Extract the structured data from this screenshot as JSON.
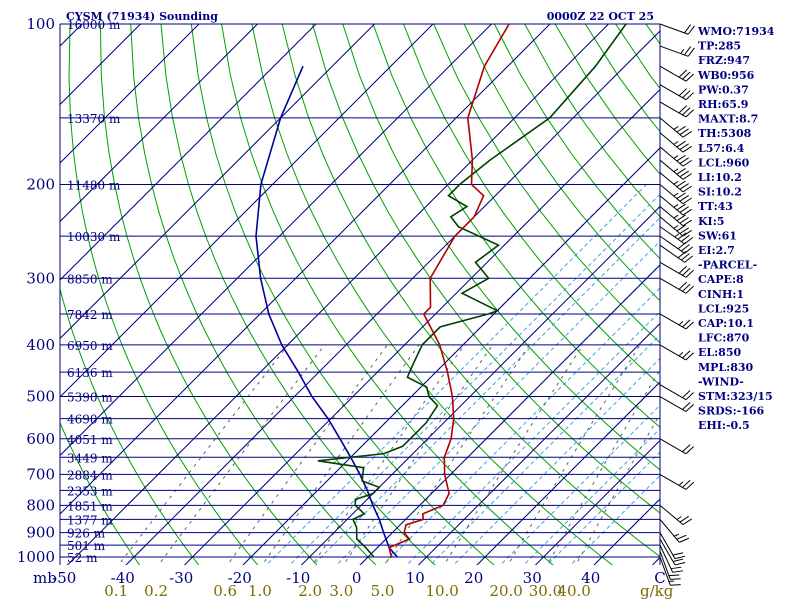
{
  "header": {
    "title": "CYSM (71934) Sounding",
    "time": "0000Z 22 OCT 25"
  },
  "axes": {
    "pressure_unit": "mb",
    "pressure_ticks": [
      "100",
      "200",
      "300",
      "400",
      "500",
      "600",
      "700",
      "800",
      "900",
      "1000"
    ],
    "temp_ticks": [
      "-50",
      "-40",
      "-30",
      "-20",
      "-10",
      "0",
      "10",
      "20",
      "30",
      "40",
      "C"
    ],
    "mix_unit": "g/kg",
    "mix_ticks": [
      "0.1",
      "0.2",
      "0.6",
      "1.0",
      "2.0",
      "3.0",
      "5.0",
      "10.0",
      "20.0",
      "30.0",
      "40.0"
    ]
  },
  "height_labels": [
    "16000 m",
    "13370 m",
    "11480 m",
    "10030 m",
    "8850 m",
    "7842 m",
    "6950 m",
    "6136 m",
    "5390 m",
    "4690 m",
    "4051 m",
    "3449 m",
    "2884 m",
    "2353 m",
    "1851 m",
    "1377 m",
    "926 m",
    "501 m",
    "52 m"
  ],
  "indices": [
    "WMO:71934",
    "TP:285",
    "FRZ:947",
    "WB0:956",
    "PW:0.37",
    "RH:65.9",
    "MAXT:8.7",
    "TH:5308",
    "L57:6.4",
    "LCL:960",
    "LI:10.2",
    "SI:10.2",
    "TT:43",
    "KI:5",
    "SW:61",
    "EI:2.7",
    "-PARCEL-",
    "CAPE:8",
    "CINH:1",
    "LCL:925",
    "CAP:10.1",
    "LFC:870",
    "EL:850",
    "MPL:830",
    "-WIND-",
    "STM:323/15",
    "SRDS:-166",
    "EHI:-0.5"
  ],
  "colors": {
    "temperature": "#b00000",
    "dewpoint": "#004000",
    "parcel": "#0000a0",
    "isobar": "#000080",
    "isotherm": "#000080",
    "dry_adiabat": "#00a000",
    "moist_adiabat": "#40a0e0",
    "mixing_ratio": "#606060",
    "barb": "#000000"
  },
  "chart_data": {
    "type": "skew-t",
    "xlabel": "C",
    "x_range_c": [
      -50,
      50
    ],
    "p_range_mb": [
      100,
      1050
    ],
    "temperature": {
      "p": [
        1000,
        960,
        925,
        900,
        870,
        850,
        830,
        800,
        760,
        700,
        650,
        600,
        550,
        500,
        450,
        400,
        350,
        340,
        300,
        250,
        230,
        210,
        200,
        180,
        150,
        120,
        100
      ],
      "t": [
        4,
        2,
        4,
        2,
        1,
        3,
        2,
        4,
        3,
        -1,
        -4,
        -6,
        -9,
        -13,
        -18,
        -24,
        -32,
        -32,
        -37,
        -40,
        -40,
        -42,
        -46,
        -50,
        -58,
        -64,
        -67
      ]
    },
    "dewpoint": {
      "p": [
        1000,
        960,
        925,
        880,
        850,
        830,
        800,
        780,
        760,
        740,
        720,
        700,
        680,
        660,
        640,
        620,
        600,
        560,
        520,
        500,
        480,
        460,
        440,
        400,
        370,
        350,
        345,
        320,
        300,
        280,
        260,
        240,
        230,
        220,
        210,
        200,
        180,
        150,
        120,
        100
      ],
      "d": [
        1,
        -2,
        -5,
        -7,
        -9,
        -8,
        -11,
        -12,
        -10,
        -10,
        -14,
        -15,
        -16,
        -25,
        -15,
        -13,
        -13,
        -13,
        -14,
        -17,
        -19,
        -24,
        -25,
        -27,
        -27,
        -21,
        -20,
        -29,
        -27,
        -32,
        -31,
        -41,
        -44,
        -43,
        -48,
        -48,
        -47,
        -44,
        -45,
        -47
      ]
    },
    "parcel": {
      "p": [
        1000,
        960,
        925,
        900,
        850,
        800,
        750,
        700,
        650,
        600,
        550,
        500,
        450,
        400,
        350,
        300,
        250,
        200,
        150,
        120
      ],
      "t": [
        5,
        2,
        0,
        -1.5,
        -4.5,
        -8,
        -11.5,
        -15.5,
        -20,
        -25,
        -30.5,
        -37,
        -43.5,
        -51,
        -58.5,
        -66,
        -74,
        -82,
        -90,
        -95
      ]
    },
    "wind_barbs": [
      {
        "p": 1000,
        "dir": 340,
        "kt": 15
      },
      {
        "p": 975,
        "dir": 340,
        "kt": 20
      },
      {
        "p": 950,
        "dir": 335,
        "kt": 20
      },
      {
        "p": 925,
        "dir": 330,
        "kt": 20
      },
      {
        "p": 900,
        "dir": 330,
        "kt": 20
      },
      {
        "p": 850,
        "dir": 320,
        "kt": 25
      },
      {
        "p": 800,
        "dir": 310,
        "kt": 25
      },
      {
        "p": 700,
        "dir": 300,
        "kt": 25
      },
      {
        "p": 600,
        "dir": 300,
        "kt": 20
      },
      {
        "p": 500,
        "dir": 300,
        "kt": 20
      },
      {
        "p": 475,
        "dir": 300,
        "kt": 20
      },
      {
        "p": 400,
        "dir": 300,
        "kt": 25
      },
      {
        "p": 350,
        "dir": 300,
        "kt": 25
      },
      {
        "p": 300,
        "dir": 300,
        "kt": 30
      },
      {
        "p": 280,
        "dir": 300,
        "kt": 30
      },
      {
        "p": 260,
        "dir": 305,
        "kt": 30
      },
      {
        "p": 250,
        "dir": 305,
        "kt": 30
      },
      {
        "p": 240,
        "dir": 305,
        "kt": 35
      },
      {
        "p": 230,
        "dir": 310,
        "kt": 35
      },
      {
        "p": 220,
        "dir": 310,
        "kt": 35
      },
      {
        "p": 210,
        "dir": 310,
        "kt": 35
      },
      {
        "p": 200,
        "dir": 310,
        "kt": 35
      },
      {
        "p": 190,
        "dir": 310,
        "kt": 35
      },
      {
        "p": 180,
        "dir": 310,
        "kt": 35
      },
      {
        "p": 170,
        "dir": 310,
        "kt": 35
      },
      {
        "p": 160,
        "dir": 310,
        "kt": 35
      },
      {
        "p": 150,
        "dir": 310,
        "kt": 35
      },
      {
        "p": 140,
        "dir": 300,
        "kt": 30
      },
      {
        "p": 130,
        "dir": 300,
        "kt": 30
      },
      {
        "p": 120,
        "dir": 300,
        "kt": 30
      },
      {
        "p": 110,
        "dir": 290,
        "kt": 25
      },
      {
        "p": 100,
        "dir": 290,
        "kt": 20
      }
    ]
  }
}
